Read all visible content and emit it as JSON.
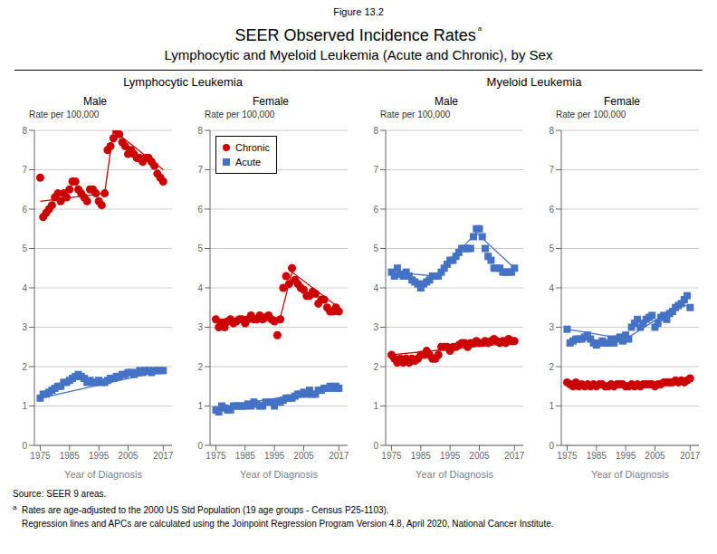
{
  "title": "SEER Observed Incidence Rates",
  "subtitle": "Lymphocytic and Myeloid Leukemia (Acute and Chronic), by Sex",
  "annotations": [
    "Figure 13.2",
    "ᵃ",
    "Lymphocytic Leukemia",
    "Myeloid Leukemia",
    "Source: SEER 9 areas.",
    "a",
    "Rates are age-adjusted to the 2000 US Std Population (19 age groups - Census P25-1103).",
    "Regression lines and APCs are calculated using the Joinpoint Regression Program Version 4.8, April 2020, National Cancer Institute."
  ],
  "chart_data": [
    {
      "type": "scatter",
      "title": "Male",
      "xlabel": "Year of Diagnosis",
      "ylabel": "Rate per 100,000",
      "xlim": [
        1973,
        2020
      ],
      "ylim": [
        0,
        8
      ],
      "xticks": [
        1975,
        1985,
        1995,
        2005,
        2017
      ],
      "yticks": [
        0,
        1,
        2,
        3,
        4,
        5,
        6,
        7,
        8
      ],
      "grid": true,
      "series": [
        {
          "name": "Chronic",
          "type": "scatter",
          "color": "#CC0000",
          "marker": "circle",
          "x": [
            1975,
            1976,
            1977,
            1978,
            1979,
            1980,
            1981,
            1982,
            1983,
            1984,
            1985,
            1986,
            1987,
            1988,
            1989,
            1990,
            1991,
            1992,
            1993,
            1994,
            1995,
            1996,
            1997,
            1998,
            1999,
            2000,
            2001,
            2002,
            2003,
            2004,
            2005,
            2006,
            2007,
            2008,
            2009,
            2010,
            2011,
            2012,
            2013,
            2014,
            2015,
            2016,
            2017
          ],
          "values": [
            6.8,
            5.8,
            5.9,
            6.0,
            6.1,
            6.3,
            6.4,
            6.2,
            6.4,
            6.3,
            6.5,
            6.7,
            6.7,
            6.5,
            6.4,
            6.3,
            6.2,
            6.5,
            6.5,
            6.4,
            6.2,
            6.1,
            6.4,
            7.5,
            7.6,
            7.8,
            8.0,
            7.9,
            7.7,
            7.6,
            7.4,
            7.5,
            7.4,
            7.3,
            7.3,
            7.2,
            7.3,
            7.3,
            7.2,
            7.1,
            6.9,
            6.8,
            6.7
          ]
        },
        {
          "type": "line",
          "color": "#CC0000",
          "line_style": "solid",
          "x": [
            1975,
            1997,
            1997,
            2000,
            2000,
            2017
          ],
          "values": [
            6.2,
            6.4,
            6.4,
            8.0,
            8.0,
            7.0
          ]
        },
        {
          "name": "Acute",
          "type": "scatter",
          "color": "#4472C4",
          "marker": "square",
          "x": [
            1975,
            1976,
            1977,
            1978,
            1979,
            1980,
            1981,
            1982,
            1983,
            1984,
            1985,
            1986,
            1987,
            1988,
            1989,
            1990,
            1991,
            1992,
            1993,
            1994,
            1995,
            1996,
            1997,
            1998,
            1999,
            2000,
            2001,
            2002,
            2003,
            2004,
            2005,
            2006,
            2007,
            2008,
            2009,
            2010,
            2011,
            2012,
            2013,
            2014,
            2015,
            2016,
            2017
          ],
          "values": [
            1.2,
            1.3,
            1.3,
            1.35,
            1.4,
            1.45,
            1.5,
            1.5,
            1.6,
            1.6,
            1.65,
            1.7,
            1.75,
            1.8,
            1.75,
            1.7,
            1.6,
            1.65,
            1.6,
            1.6,
            1.65,
            1.6,
            1.6,
            1.65,
            1.7,
            1.7,
            1.75,
            1.75,
            1.8,
            1.8,
            1.85,
            1.85,
            1.8,
            1.85,
            1.9,
            1.85,
            1.9,
            1.9,
            1.85,
            1.9,
            1.9,
            1.9,
            1.9
          ]
        },
        {
          "type": "line",
          "color": "#4472C4",
          "line_style": "solid",
          "x": [
            1975,
            2017
          ],
          "values": [
            1.2,
            1.9
          ]
        }
      ]
    },
    {
      "type": "scatter",
      "title": "Female",
      "xlabel": "Year of Diagnosis",
      "ylabel": "Rate per 100,000",
      "xlim": [
        1973,
        2020
      ],
      "ylim": [
        0,
        8
      ],
      "xticks": [
        1975,
        1985,
        1995,
        2005,
        2017
      ],
      "yticks": [
        0,
        1,
        2,
        3,
        4,
        5,
        6,
        7,
        8
      ],
      "grid": true,
      "legend": "upper left",
      "series": [
        {
          "name": "Chronic",
          "type": "scatter",
          "color": "#CC0000",
          "marker": "circle",
          "x": [
            1975,
            1976,
            1977,
            1978,
            1979,
            1980,
            1981,
            1982,
            1983,
            1984,
            1985,
            1986,
            1987,
            1988,
            1989,
            1990,
            1991,
            1992,
            1993,
            1994,
            1995,
            1996,
            1997,
            1998,
            1999,
            2000,
            2001,
            2002,
            2003,
            2004,
            2005,
            2006,
            2007,
            2008,
            2009,
            2010,
            2011,
            2012,
            2013,
            2014,
            2015,
            2016,
            2017
          ],
          "values": [
            3.2,
            3.0,
            3.1,
            3.0,
            3.15,
            3.2,
            3.1,
            3.15,
            3.2,
            3.2,
            3.1,
            3.2,
            3.3,
            3.2,
            3.2,
            3.3,
            3.2,
            3.25,
            3.3,
            3.2,
            3.15,
            2.8,
            3.2,
            4.0,
            4.3,
            4.1,
            4.5,
            4.2,
            4.1,
            4.0,
            3.95,
            3.8,
            3.8,
            3.9,
            3.85,
            3.6,
            3.7,
            3.7,
            3.5,
            3.4,
            3.4,
            3.5,
            3.4
          ]
        },
        {
          "type": "line",
          "color": "#CC0000",
          "line_style": "solid",
          "x": [
            1975,
            1997,
            1997,
            2001,
            2001,
            2017
          ],
          "values": [
            3.2,
            3.25,
            3.25,
            4.4,
            4.4,
            3.5
          ]
        },
        {
          "name": "Acute",
          "type": "scatter",
          "color": "#4472C4",
          "marker": "square",
          "x": [
            1975,
            1976,
            1977,
            1978,
            1979,
            1980,
            1981,
            1982,
            1983,
            1984,
            1985,
            1986,
            1987,
            1988,
            1989,
            1990,
            1991,
            1992,
            1993,
            1994,
            1995,
            1996,
            1997,
            1998,
            1999,
            2000,
            2001,
            2002,
            2003,
            2004,
            2005,
            2006,
            2007,
            2008,
            2009,
            2010,
            2011,
            2012,
            2013,
            2014,
            2015,
            2016,
            2017
          ],
          "values": [
            0.9,
            0.85,
            1.0,
            0.95,
            0.9,
            0.9,
            1.0,
            1.0,
            1.0,
            1.0,
            1.0,
            1.05,
            1.0,
            1.1,
            1.05,
            1.0,
            1.0,
            1.1,
            1.1,
            1.1,
            1.0,
            1.1,
            1.1,
            1.15,
            1.2,
            1.2,
            1.2,
            1.25,
            1.3,
            1.3,
            1.35,
            1.3,
            1.4,
            1.3,
            1.3,
            1.4,
            1.4,
            1.45,
            1.45,
            1.5,
            1.45,
            1.5,
            1.45
          ]
        },
        {
          "type": "line",
          "color": "#4472C4",
          "line_style": "solid",
          "x": [
            1975,
            2017
          ],
          "values": [
            0.95,
            1.45
          ]
        }
      ]
    },
    {
      "type": "scatter",
      "title": "Male",
      "xlabel": "Year of Diagnosis",
      "ylabel": "Rate per 100,000",
      "xlim": [
        1973,
        2020
      ],
      "ylim": [
        0,
        8
      ],
      "xticks": [
        1975,
        1985,
        1995,
        2005,
        2017
      ],
      "yticks": [
        0,
        1,
        2,
        3,
        4,
        5,
        6,
        7,
        8
      ],
      "grid": true,
      "series": [
        {
          "name": "Chronic",
          "type": "scatter",
          "color": "#CC0000",
          "marker": "circle",
          "x": [
            1975,
            1976,
            1977,
            1978,
            1979,
            1980,
            1981,
            1982,
            1983,
            1984,
            1985,
            1986,
            1987,
            1988,
            1989,
            1990,
            1991,
            1992,
            1993,
            1994,
            1995,
            1996,
            1997,
            1998,
            1999,
            2000,
            2001,
            2002,
            2003,
            2004,
            2005,
            2006,
            2007,
            2008,
            2009,
            2010,
            2011,
            2012,
            2013,
            2014,
            2015,
            2016,
            2017
          ],
          "values": [
            2.3,
            2.2,
            2.1,
            2.2,
            2.1,
            2.2,
            2.1,
            2.2,
            2.15,
            2.2,
            2.3,
            2.3,
            2.4,
            2.3,
            2.2,
            2.2,
            2.3,
            2.5,
            2.5,
            2.5,
            2.4,
            2.5,
            2.5,
            2.55,
            2.6,
            2.6,
            2.5,
            2.6,
            2.6,
            2.65,
            2.6,
            2.6,
            2.65,
            2.6,
            2.65,
            2.7,
            2.65,
            2.6,
            2.65,
            2.6,
            2.7,
            2.65,
            2.65
          ]
        },
        {
          "type": "line",
          "color": "#CC0000",
          "line_style": "solid",
          "x": [
            1975,
            2017
          ],
          "values": [
            2.3,
            2.6
          ]
        },
        {
          "name": "Acute",
          "type": "scatter",
          "color": "#4472C4",
          "marker": "square",
          "x": [
            1975,
            1976,
            1977,
            1978,
            1979,
            1980,
            1981,
            1982,
            1983,
            1984,
            1985,
            1986,
            1987,
            1988,
            1989,
            1990,
            1991,
            1992,
            1993,
            1994,
            1995,
            1996,
            1997,
            1998,
            1999,
            2000,
            2001,
            2002,
            2003,
            2004,
            2005,
            2006,
            2007,
            2008,
            2009,
            2010,
            2011,
            2012,
            2013,
            2014,
            2015,
            2016,
            2017
          ],
          "values": [
            4.4,
            4.3,
            4.5,
            4.35,
            4.3,
            4.4,
            4.3,
            4.2,
            4.15,
            4.1,
            4.0,
            4.1,
            4.15,
            4.2,
            4.3,
            4.3,
            4.3,
            4.4,
            4.5,
            4.6,
            4.7,
            4.7,
            4.8,
            4.9,
            5.0,
            5.0,
            5.0,
            5.0,
            5.3,
            5.5,
            5.5,
            5.3,
            5.0,
            4.8,
            4.7,
            4.5,
            4.5,
            4.5,
            4.4,
            4.4,
            4.4,
            4.4,
            4.5
          ]
        },
        {
          "type": "line",
          "color": "#4472C4",
          "line_style": "solid",
          "x": [
            1975,
            1990,
            1990,
            2004,
            2004,
            2017
          ],
          "values": [
            4.4,
            4.3,
            4.3,
            5.4,
            5.4,
            4.5
          ]
        }
      ]
    },
    {
      "type": "scatter",
      "title": "Female",
      "xlabel": "Year of Diagnosis",
      "ylabel": "Rate per 100,000",
      "xlim": [
        1973,
        2020
      ],
      "ylim": [
        0,
        8
      ],
      "xticks": [
        1975,
        1985,
        1995,
        2005,
        2017
      ],
      "yticks": [
        0,
        1,
        2,
        3,
        4,
        5,
        6,
        7,
        8
      ],
      "grid": true,
      "series": [
        {
          "name": "Chronic",
          "type": "scatter",
          "color": "#CC0000",
          "marker": "circle",
          "x": [
            1975,
            1976,
            1977,
            1978,
            1979,
            1980,
            1981,
            1982,
            1983,
            1984,
            1985,
            1986,
            1987,
            1988,
            1989,
            1990,
            1991,
            1992,
            1993,
            1994,
            1995,
            1996,
            1997,
            1998,
            1999,
            2000,
            2001,
            2002,
            2003,
            2004,
            2005,
            2006,
            2007,
            2008,
            2009,
            2010,
            2011,
            2012,
            2013,
            2014,
            2015,
            2016,
            2017
          ],
          "values": [
            1.6,
            1.55,
            1.5,
            1.6,
            1.5,
            1.55,
            1.5,
            1.55,
            1.5,
            1.55,
            1.5,
            1.55,
            1.55,
            1.5,
            1.5,
            1.55,
            1.5,
            1.55,
            1.55,
            1.55,
            1.5,
            1.5,
            1.55,
            1.5,
            1.55,
            1.5,
            1.55,
            1.55,
            1.55,
            1.55,
            1.5,
            1.55,
            1.55,
            1.6,
            1.6,
            1.6,
            1.6,
            1.65,
            1.6,
            1.65,
            1.6,
            1.65,
            1.7
          ]
        },
        {
          "type": "line",
          "color": "#CC0000",
          "line_style": "solid",
          "x": [
            1975,
            2017
          ],
          "values": [
            1.55,
            1.6
          ]
        },
        {
          "name": "Acute",
          "type": "scatter",
          "color": "#4472C4",
          "marker": "square",
          "x": [
            1975,
            1976,
            1977,
            1978,
            1979,
            1980,
            1981,
            1982,
            1983,
            1984,
            1985,
            1986,
            1987,
            1988,
            1989,
            1990,
            1991,
            1992,
            1993,
            1994,
            1995,
            1996,
            1997,
            1998,
            1999,
            2000,
            2001,
            2002,
            2003,
            2004,
            2005,
            2006,
            2007,
            2008,
            2009,
            2010,
            2011,
            2012,
            2013,
            2014,
            2015,
            2016,
            2017
          ],
          "values": [
            2.95,
            2.6,
            2.65,
            2.7,
            2.7,
            2.7,
            2.75,
            2.8,
            2.7,
            2.6,
            2.55,
            2.6,
            2.65,
            2.6,
            2.6,
            2.7,
            2.6,
            2.7,
            2.75,
            2.65,
            2.8,
            2.7,
            3.0,
            3.1,
            3.2,
            3.0,
            3.1,
            3.2,
            3.25,
            3.3,
            3.0,
            3.1,
            3.25,
            3.3,
            3.2,
            3.35,
            3.4,
            3.5,
            3.55,
            3.6,
            3.7,
            3.8,
            3.5
          ]
        },
        {
          "type": "line",
          "color": "#4472C4",
          "line_style": "solid",
          "x": [
            1975,
            1995,
            1995,
            2014,
            2014,
            2017
          ],
          "values": [
            2.95,
            2.7,
            2.7,
            3.6,
            3.6,
            3.5
          ]
        }
      ]
    }
  ]
}
